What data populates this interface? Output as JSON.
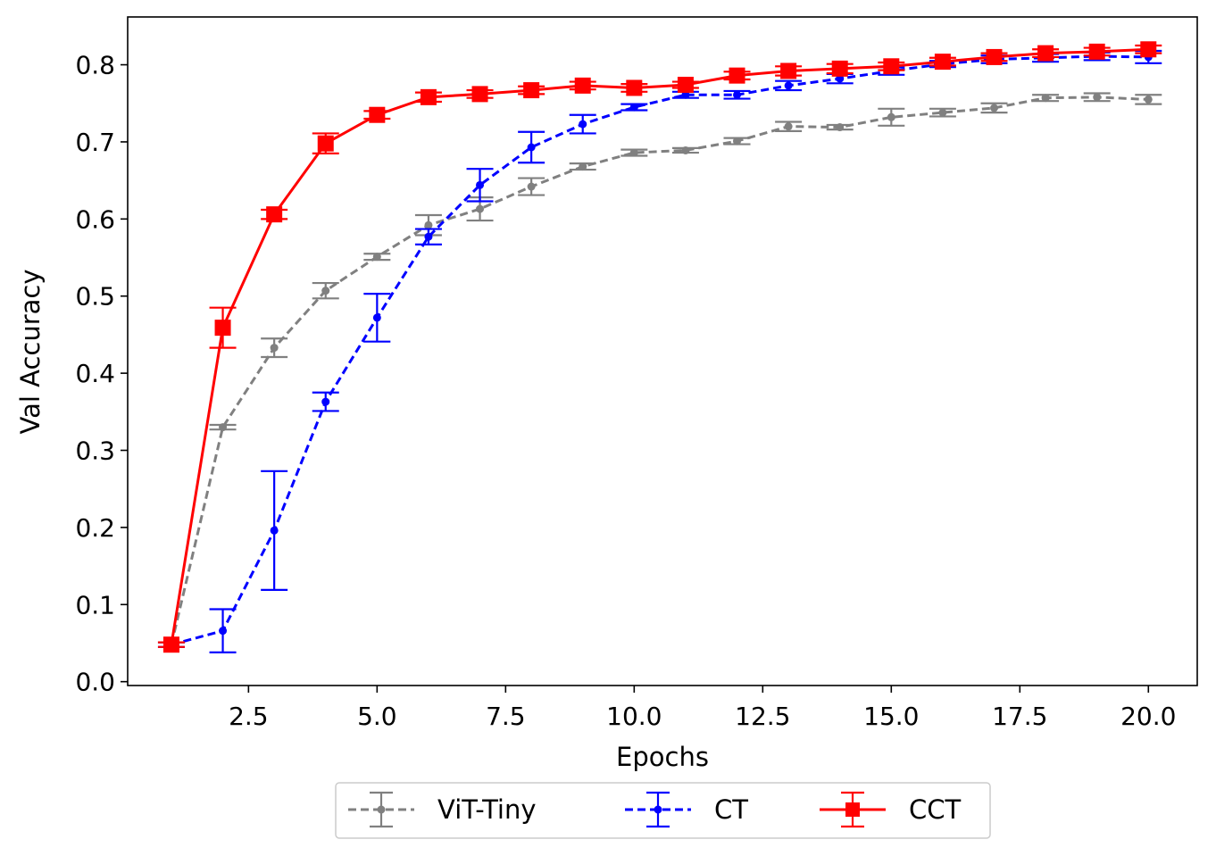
{
  "chart_data": {
    "type": "line",
    "title": "",
    "xlabel": "Epochs",
    "ylabel": "Val Accuracy",
    "xlim": [
      0.15,
      20.95
    ],
    "ylim": [
      -0.005,
      0.862
    ],
    "xticks": [
      2.5,
      5.0,
      7.5,
      10.0,
      12.5,
      15.0,
      17.5,
      20.0
    ],
    "xtick_labels": [
      "2.5",
      "5.0",
      "7.5",
      "10.0",
      "12.5",
      "15.0",
      "17.5",
      "20.0"
    ],
    "yticks": [
      0.0,
      0.1,
      0.2,
      0.3,
      0.4,
      0.5,
      0.6,
      0.7,
      0.8
    ],
    "ytick_labels": [
      "0.0",
      "0.1",
      "0.2",
      "0.3",
      "0.4",
      "0.5",
      "0.6",
      "0.7",
      "0.8"
    ],
    "grid": false,
    "legend_placement": "bottom-center, below axes, 3 columns",
    "x": [
      1,
      2,
      3,
      4,
      5,
      6,
      7,
      8,
      9,
      10,
      11,
      12,
      13,
      14,
      15,
      16,
      17,
      18,
      19,
      20
    ],
    "series": [
      {
        "name": "ViT-Tiny",
        "color": "#808080",
        "line_style": "dashed",
        "marker": "dot",
        "values": [
          0.048,
          0.33,
          0.433,
          0.507,
          0.551,
          0.592,
          0.613,
          0.642,
          0.668,
          0.686,
          0.689,
          0.701,
          0.72,
          0.719,
          0.732,
          0.738,
          0.744,
          0.757,
          0.758,
          0.755
        ],
        "errors": [
          0.003,
          0.003,
          0.012,
          0.01,
          0.004,
          0.013,
          0.015,
          0.011,
          0.004,
          0.004,
          0.003,
          0.004,
          0.006,
          0.003,
          0.011,
          0.005,
          0.006,
          0.004,
          0.005,
          0.006
        ]
      },
      {
        "name": "CT",
        "color": "#0000ff",
        "line_style": "dashed",
        "marker": "dot",
        "values": [
          0.048,
          0.066,
          0.196,
          0.363,
          0.472,
          0.577,
          0.644,
          0.693,
          0.723,
          0.745,
          0.761,
          0.761,
          0.773,
          0.782,
          0.792,
          0.801,
          0.807,
          0.809,
          0.811,
          0.81
        ],
        "errors": [
          0.003,
          0.028,
          0.077,
          0.012,
          0.031,
          0.01,
          0.021,
          0.02,
          0.012,
          0.004,
          0.004,
          0.005,
          0.006,
          0.006,
          0.005,
          0.004,
          0.005,
          0.005,
          0.005,
          0.008
        ]
      },
      {
        "name": "CCT",
        "color": "#ff0000",
        "line_style": "solid",
        "marker": "square",
        "values": [
          0.048,
          0.459,
          0.606,
          0.698,
          0.735,
          0.758,
          0.762,
          0.767,
          0.773,
          0.77,
          0.774,
          0.786,
          0.792,
          0.795,
          0.798,
          0.804,
          0.81,
          0.815,
          0.817,
          0.82
        ],
        "errors": [
          0.003,
          0.026,
          0.006,
          0.013,
          0.005,
          0.006,
          0.005,
          0.005,
          0.005,
          0.005,
          0.004,
          0.005,
          0.006,
          0.006,
          0.005,
          0.005,
          0.005,
          0.005,
          0.005,
          0.005
        ]
      }
    ]
  }
}
